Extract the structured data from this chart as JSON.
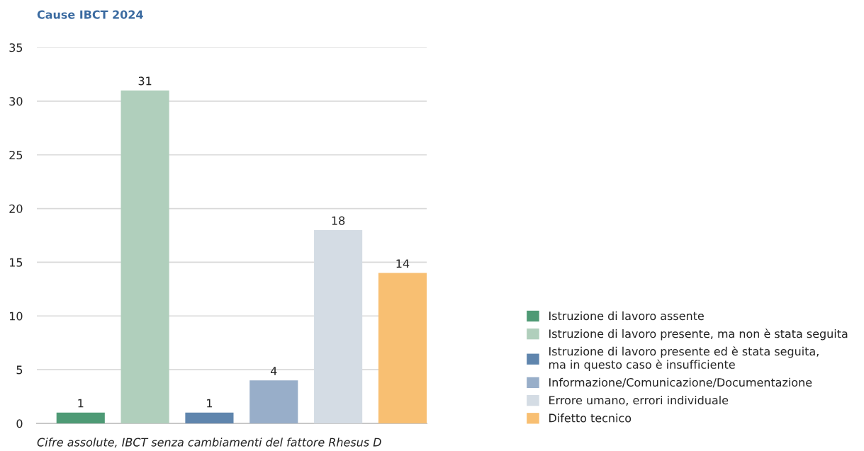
{
  "chart_data": {
    "type": "bar",
    "title": "Cause IBCT 2024",
    "categories": [
      null
    ],
    "series": [
      {
        "name": "Istruzione di lavoro assente",
        "color": "#4e9a75",
        "values": [
          1
        ]
      },
      {
        "name": "Istruzione di lavoro presente, ma non è stata seguita",
        "color": "#b0cfbc",
        "values": [
          31
        ]
      },
      {
        "name": "Istruzione di lavoro presente ed è stata seguita,\nma in questo caso è insufficiente",
        "color": "#5f85ad",
        "values": [
          1
        ]
      },
      {
        "name": "Informazione/Comunicazione/Documentazione",
        "color": "#98aec9",
        "values": [
          4
        ]
      },
      {
        "name": "Errore umano, errori individuale",
        "color": "#d4dce4",
        "values": [
          18
        ]
      },
      {
        "name": "Difetto tecnico",
        "color": "#f8bf72",
        "values": [
          14
        ]
      }
    ],
    "ylim": [
      0,
      35
    ],
    "yticks": [
      0,
      5,
      10,
      15,
      20,
      25,
      30,
      35
    ],
    "grid": "y",
    "legend": "right",
    "data_labels": true,
    "annotations": [
      "Cifre assolute, IBCT senza cambiamenti del fattore Rhesus D"
    ]
  }
}
